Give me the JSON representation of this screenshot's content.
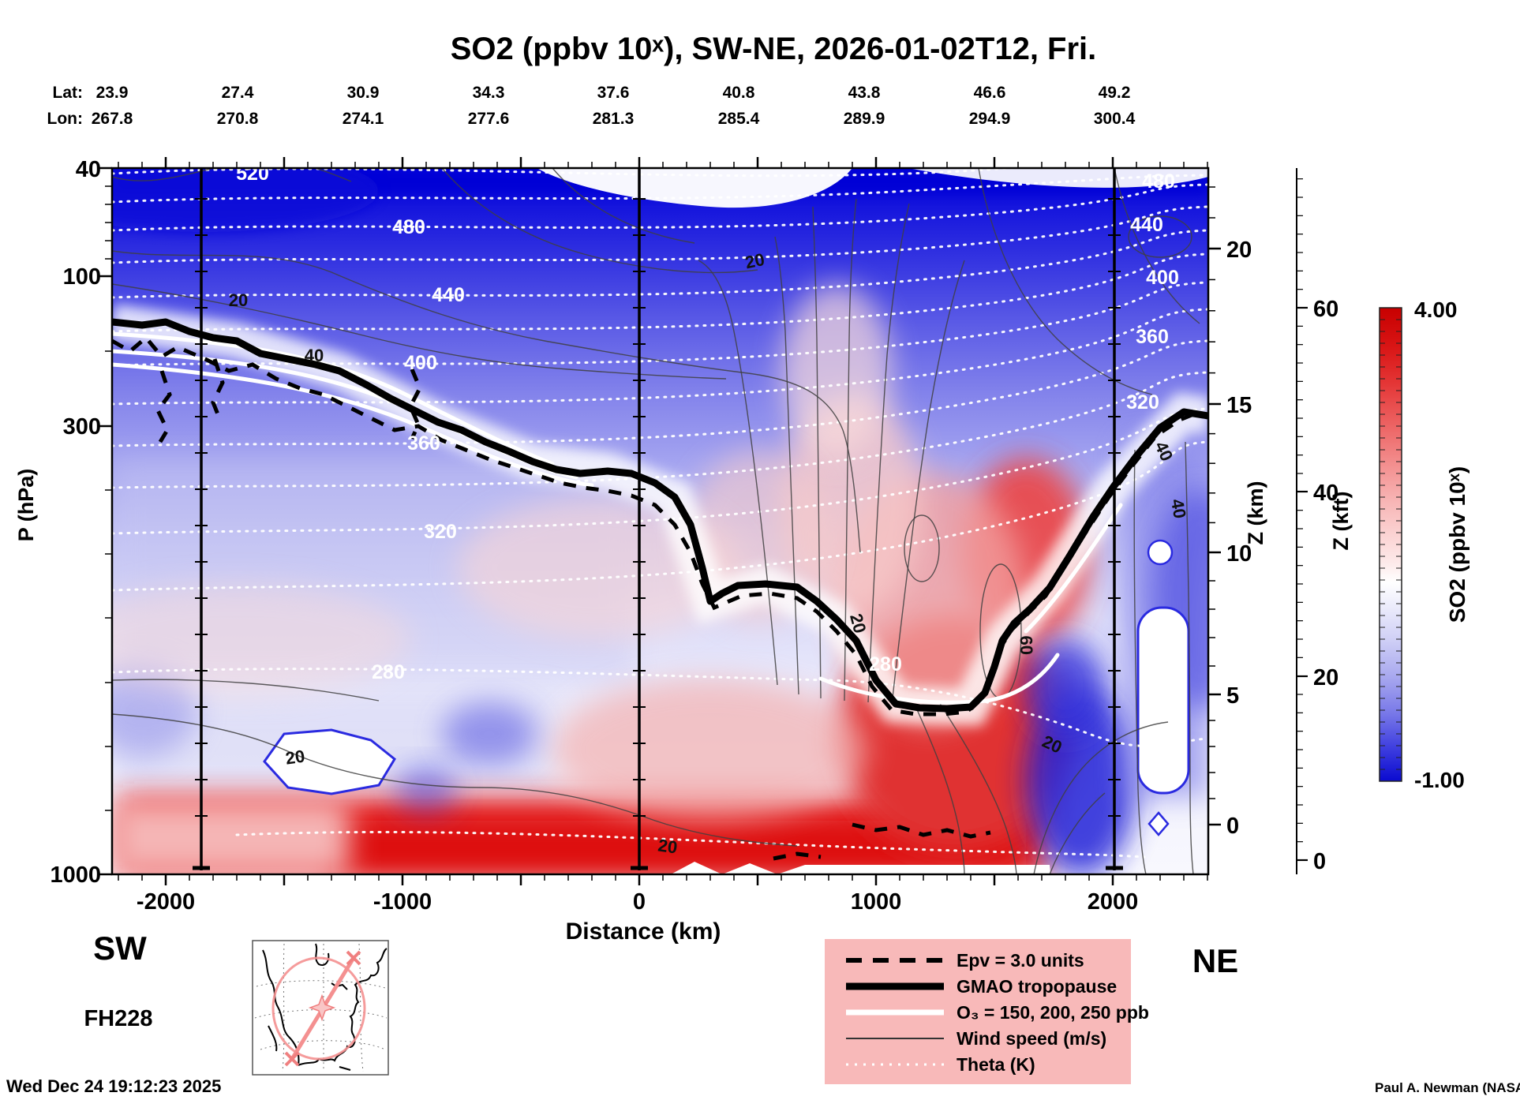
{
  "title": "SO2 (ppbv 10ˣ), SW-NE, 2026-01-02T12, Fri.",
  "top_axis": {
    "lat_label": "Lat:",
    "lon_label": "Lon:",
    "lat": [
      "23.9",
      "27.4",
      "30.9",
      "34.3",
      "37.6",
      "40.8",
      "43.8",
      "46.6",
      "49.2"
    ],
    "lon": [
      "267.8",
      "270.8",
      "274.1",
      "277.6",
      "281.3",
      "285.4",
      "289.9",
      "294.9",
      "300.4"
    ]
  },
  "left_axis": {
    "label": "P (hPa)",
    "ticks": [
      "40",
      "100",
      "300",
      "1000"
    ]
  },
  "right_axis_km": {
    "label": "Z (km)",
    "ticks": [
      "20",
      "15",
      "10",
      "5",
      "0"
    ]
  },
  "right_axis_kft": {
    "label": "Z (kft)",
    "ticks": [
      "60",
      "40",
      "20",
      "0"
    ]
  },
  "x_axis": {
    "label": "Distance (km)",
    "ticks": [
      "-2000",
      "-1000",
      "0",
      "1000",
      "2000"
    ]
  },
  "endpoints": {
    "sw": "SW",
    "ne": "NE"
  },
  "forecast_hour": "FH228",
  "timestamp": "Wed Dec 24 19:12:23 2025",
  "credit": "Paul A. Newman (NASA",
  "colorbar": {
    "max": "4.00",
    "min": "-1.00",
    "label": "SO2 (ppbv 10ˣ)"
  },
  "legend": {
    "items": [
      {
        "id": "epv",
        "label": "Epv = 3.0 units"
      },
      {
        "id": "tropopause",
        "label": "GMAO tropopause"
      },
      {
        "id": "o3",
        "label": "O₃ = 150, 200, 250 ppb"
      },
      {
        "id": "wind",
        "label": "Wind speed (m/s)"
      },
      {
        "id": "theta",
        "label": "Theta (K)"
      }
    ]
  },
  "contour_labels": {
    "theta": [
      {
        "text": "520"
      },
      {
        "text": "480"
      },
      {
        "text": "480"
      },
      {
        "text": "440"
      },
      {
        "text": "440"
      },
      {
        "text": "400"
      },
      {
        "text": "400"
      },
      {
        "text": "360"
      },
      {
        "text": "360"
      },
      {
        "text": "320"
      },
      {
        "text": "320"
      },
      {
        "text": "280"
      },
      {
        "text": "280"
      }
    ],
    "wind": [
      {
        "text": "20"
      },
      {
        "text": "40"
      },
      {
        "text": "20"
      },
      {
        "text": "20"
      },
      {
        "text": "60"
      },
      {
        "text": "40"
      },
      {
        "text": "40"
      },
      {
        "text": "20"
      },
      {
        "text": "20"
      },
      {
        "text": "20"
      }
    ]
  },
  "chart_data": {
    "type": "heatmap",
    "title": "SO2 (ppbv 10^x), SW-NE, 2026-01-02T12, Fri.",
    "description": "Vertical atmospheric cross-section of SO2 along a SW-NE transect with overlaid contours",
    "x_axis": {
      "label": "Distance (km)",
      "ticks": [
        -2000,
        -1000,
        0,
        1000,
        2000
      ],
      "minor_tick_interval": 100,
      "range": [
        -2230,
        2400
      ]
    },
    "y_axis_left": {
      "label": "P (hPa)",
      "ticks": [
        40,
        100,
        300,
        1000
      ],
      "direction": "pressure decreasing upward"
    },
    "y_axis_right_km": {
      "label": "Z (km)",
      "ticks": [
        20,
        15,
        10,
        5,
        0
      ]
    },
    "y_axis_right_kft": {
      "label": "Z (kft)",
      "ticks": [
        60,
        40,
        20,
        0
      ]
    },
    "transect": {
      "orientation": "SW-NE",
      "lat": [
        23.9,
        27.4,
        30.9,
        34.3,
        37.6,
        40.8,
        43.8,
        46.6,
        49.2
      ],
      "lon": [
        267.8,
        270.8,
        274.1,
        277.6,
        281.3,
        285.4,
        289.9,
        294.9,
        300.4
      ]
    },
    "colorbar": {
      "label": "SO2 (ppbv 10^x)",
      "min": -1.0,
      "max": 4.0,
      "colormap": "blue-white-red",
      "n_segments": 40
    },
    "overlays": [
      {
        "name": "Epv",
        "value": "3.0 units",
        "style": "thick dashed black"
      },
      {
        "name": "GMAO tropopause",
        "style": "thick solid black"
      },
      {
        "name": "O3",
        "value": "150, 200, 250 ppb",
        "style": "thick solid white"
      },
      {
        "name": "Wind speed (m/s)",
        "labeled_contours": [
          20,
          40,
          60
        ],
        "style": "thin solid gray"
      },
      {
        "name": "Theta (K)",
        "labeled_contours": [
          280,
          320,
          360,
          400,
          440,
          480,
          520
        ],
        "style": "white dotted"
      }
    ],
    "valid_time": "2026-01-02T12",
    "forecast_hour": 228,
    "created": "Wed Dec 24 19:12:23 2025"
  }
}
